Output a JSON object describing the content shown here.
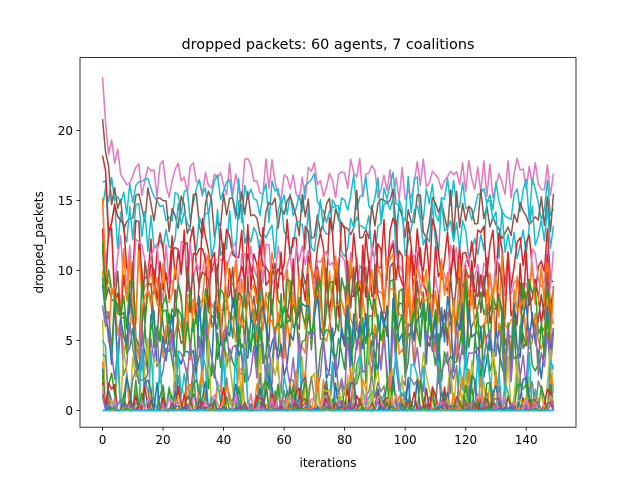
{
  "chart_data": {
    "type": "line",
    "title": "dropped packets: 60 agents, 7 coalitions",
    "xlabel": "iterations",
    "ylabel": "dropped_packets",
    "xlim": [
      -7.45,
      156.45
    ],
    "ylim": [
      -1.2,
      25.2
    ],
    "xticks": [
      0,
      20,
      40,
      60,
      80,
      100,
      120,
      140
    ],
    "yticks": [
      0,
      5,
      10,
      15,
      20
    ],
    "n_points": 150,
    "grid": false,
    "legend": "none",
    "palette": [
      "#1f77b4",
      "#ff7f0e",
      "#2ca02c",
      "#d62728",
      "#9467bd",
      "#8c564b",
      "#e377c2",
      "#7f7f7f",
      "#bcbd22",
      "#17becf"
    ],
    "series": [
      {
        "color": "#e377c2",
        "start": 23.8,
        "level": 16.5,
        "amp": 1.5
      },
      {
        "color": "#17becf",
        "start": 14.5,
        "level": 15.2,
        "amp": 1.8
      },
      {
        "color": "#8c564b",
        "start": 20.8,
        "level": 14.0,
        "amp": 1.8
      },
      {
        "color": "#17becf",
        "start": 16.3,
        "level": 13.0,
        "amp": 2.2
      },
      {
        "color": "#d62728",
        "start": 18.2,
        "level": 11.0,
        "amp": 2.8
      },
      {
        "color": "#e377c2",
        "start": 15.0,
        "level": 10.0,
        "amp": 2.2
      },
      {
        "color": "#d62728",
        "start": 13.0,
        "level": 9.0,
        "amp": 3.0
      },
      {
        "color": "#ff7f0e",
        "start": 15.2,
        "level": 8.5,
        "amp": 2.8
      },
      {
        "color": "#8c564b",
        "start": 11.5,
        "level": 7.5,
        "amp": 3.2
      },
      {
        "color": "#2ca02c",
        "start": 12.0,
        "level": 6.5,
        "amp": 3.0
      },
      {
        "color": "#ff7f0e",
        "start": 10.0,
        "level": 6.0,
        "amp": 2.8
      },
      {
        "color": "#1f77b4",
        "start": 9.0,
        "level": 5.2,
        "amp": 3.0
      },
      {
        "color": "#2ca02c",
        "start": 9.5,
        "level": 4.5,
        "amp": 3.0
      },
      {
        "color": "#9467bd",
        "start": 7.5,
        "level": 3.6,
        "amp": 2.6
      },
      {
        "color": "#bcbd22",
        "start": 6.5,
        "level": 2.8,
        "amp": 2.4
      },
      {
        "color": "#17becf",
        "start": 5.0,
        "level": 2.2,
        "amp": 2.2
      },
      {
        "color": "#7f7f7f",
        "start": 4.0,
        "level": 1.6,
        "amp": 1.8
      },
      {
        "color": "#ff7f0e",
        "start": 3.5,
        "level": 1.2,
        "amp": 1.8
      },
      {
        "color": "#1f77b4",
        "start": 3.0,
        "level": 0.9,
        "amp": 1.6
      },
      {
        "color": "#2ca02c",
        "start": 2.5,
        "level": 0.7,
        "amp": 1.5
      },
      {
        "color": "#d62728",
        "start": 2.0,
        "level": 0.5,
        "amp": 1.3
      },
      {
        "color": "#bcbd22",
        "start": 1.8,
        "level": 0.4,
        "amp": 1.2
      },
      {
        "color": "#e377c2",
        "start": 1.5,
        "level": 0.3,
        "amp": 1.0
      },
      {
        "color": "#8c564b",
        "start": 1.2,
        "level": 0.2,
        "amp": 0.8
      },
      {
        "color": "#9467bd",
        "start": 1.0,
        "level": 0.1,
        "amp": 0.6
      },
      {
        "color": "#1f77b4",
        "start": 0.0,
        "level": 0.0,
        "amp": 0.3
      },
      {
        "color": "#ff7f0e",
        "start": 0.0,
        "level": 0.0,
        "amp": 0.2
      },
      {
        "color": "#2ca02c",
        "start": 0.0,
        "level": 0.0,
        "amp": 0.2
      },
      {
        "color": "#17becf",
        "start": 0.0,
        "level": 0.0,
        "amp": 0.1
      }
    ]
  }
}
